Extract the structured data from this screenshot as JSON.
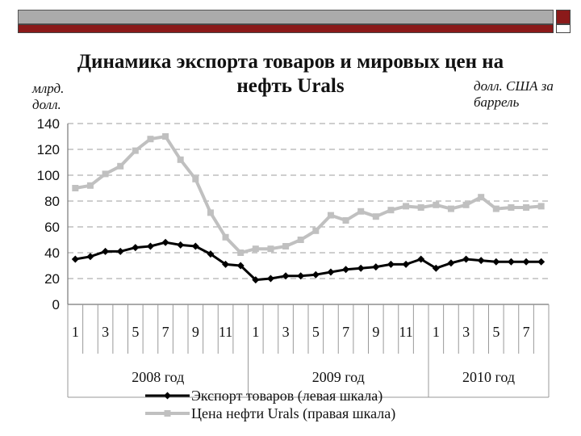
{
  "title": "Динамика экспорта товаров и мировых цен на нефть Urals",
  "y_unit_left": "млрд. долл.",
  "y_unit_right": "долл. США за баррель",
  "chart_data": {
    "type": "line",
    "title": "Динамика экспорта товаров и мировых цен на нефть Urals",
    "ylabel": "млрд. долл.",
    "ylim": [
      0,
      140
    ],
    "yticks": [
      0,
      20,
      40,
      60,
      80,
      100,
      120,
      140
    ],
    "grid": true,
    "x_tick_labels": [
      "1",
      "3",
      "5",
      "7",
      "9",
      "11",
      "1",
      "3",
      "5",
      "7",
      "9",
      "11",
      "1",
      "3",
      "5",
      "7"
    ],
    "groups": [
      {
        "label": "2008 год",
        "months": 12
      },
      {
        "label": "2009 год",
        "months": 12
      },
      {
        "label": "2010 год",
        "months": 8
      }
    ],
    "legend_position": "bottom",
    "series": [
      {
        "name": "Экспорт товаров (левая шкала)",
        "color": "#000000",
        "values": [
          35,
          37,
          41,
          41,
          44,
          45,
          48,
          46,
          45,
          39,
          31,
          30,
          19,
          20,
          22,
          22,
          23,
          25,
          27,
          28,
          29,
          31,
          31,
          35,
          28,
          32,
          35,
          34,
          33,
          33,
          33,
          33
        ]
      },
      {
        "name": "Цена нефти Urals (правая шкала)",
        "color": "#c0c0c0",
        "values": [
          90,
          92,
          101,
          107,
          119,
          128,
          130,
          112,
          97,
          71,
          52,
          40,
          43,
          43,
          45,
          50,
          57,
          69,
          65,
          72,
          68,
          73,
          76,
          75,
          77,
          74,
          77,
          83,
          74,
          75,
          75,
          76
        ]
      }
    ]
  }
}
